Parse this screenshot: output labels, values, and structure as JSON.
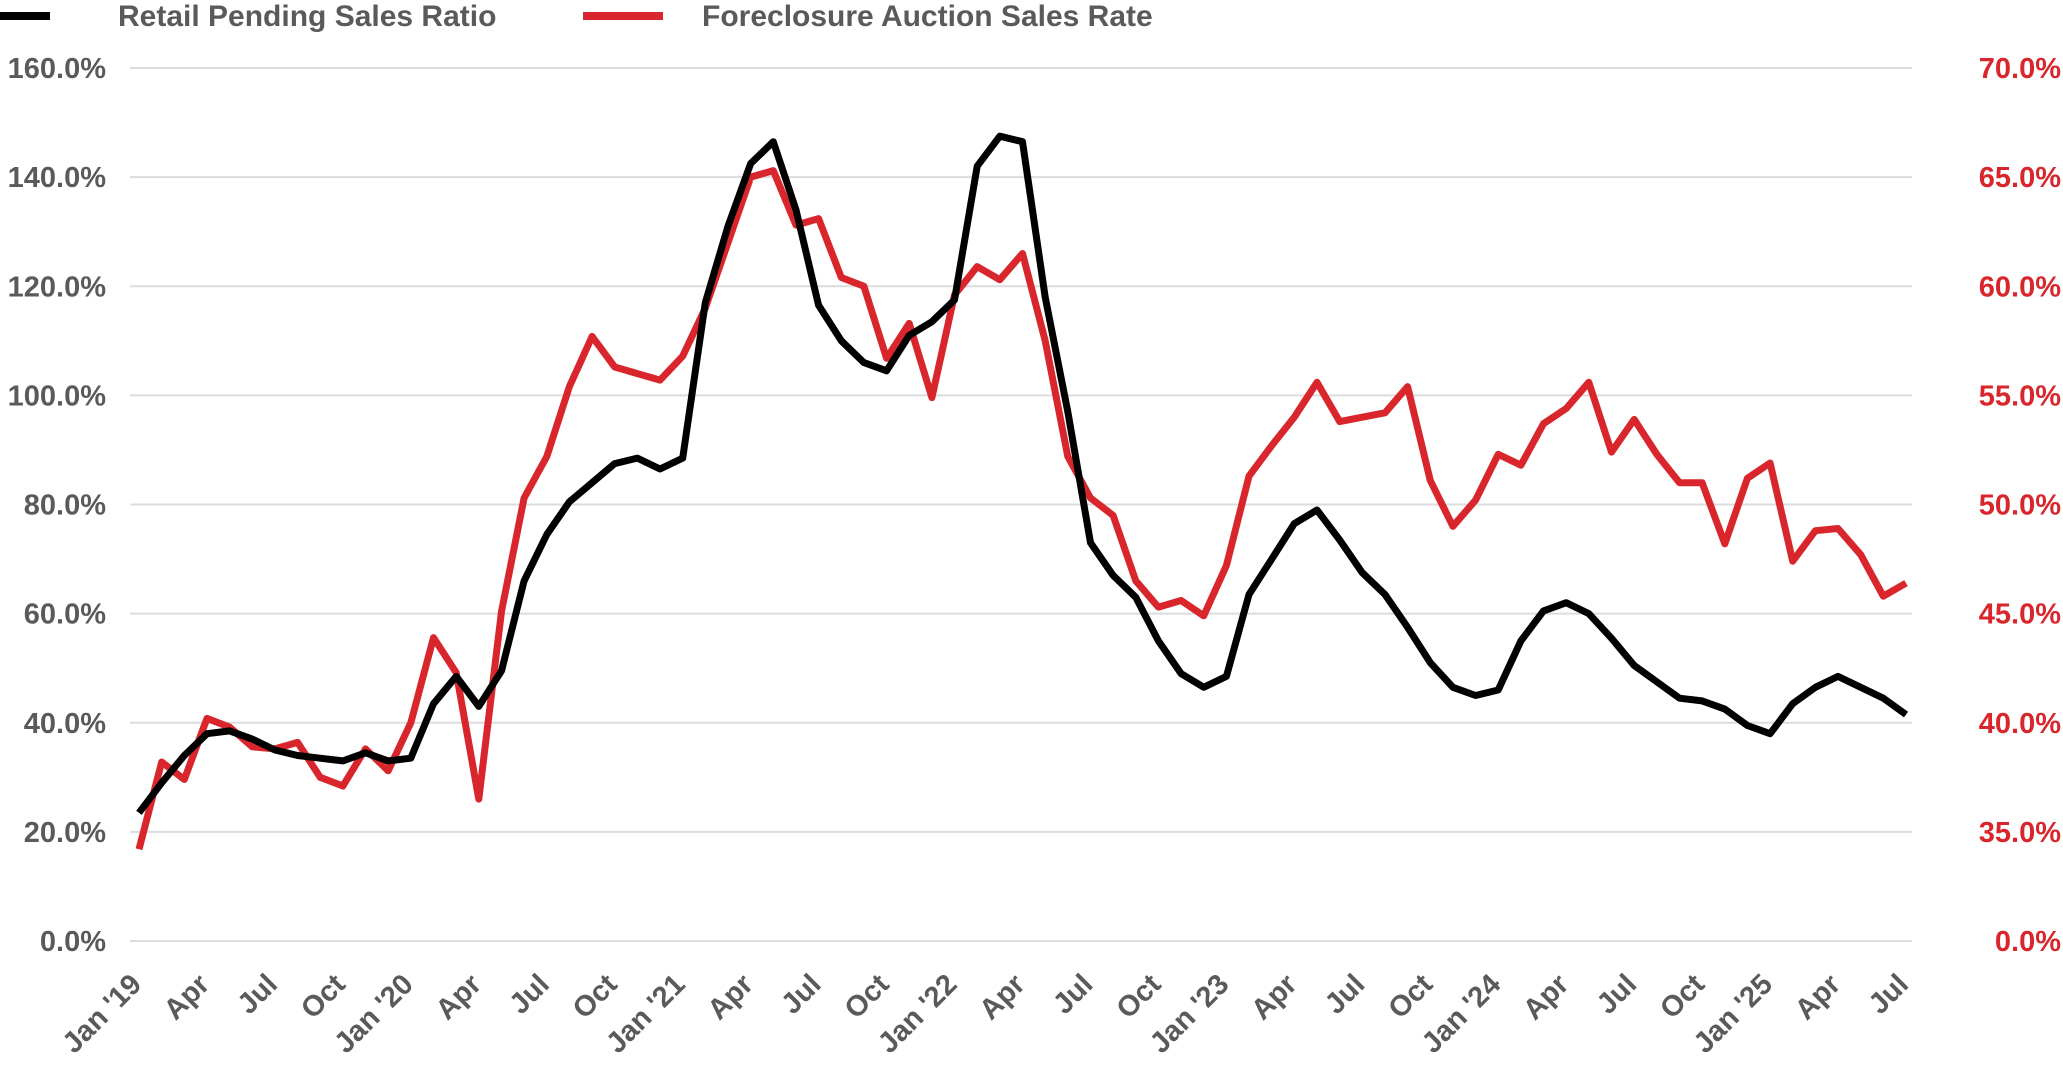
{
  "chart_data": {
    "type": "line",
    "title": "",
    "xlabel": "",
    "ylabel": "",
    "legend_position": "top-left",
    "grid": true,
    "y_left": {
      "min": 0,
      "max": 160,
      "ticks": [
        0,
        20,
        40,
        60,
        80,
        100,
        120,
        140,
        160
      ],
      "tick_labels": [
        "0.0%",
        "20.0%",
        "40.0%",
        "60.0%",
        "80.0%",
        "100.0%",
        "120.0%",
        "140.0%",
        "160.0%"
      ]
    },
    "y_right": {
      "tick_labels": [
        "0.0%",
        "35.0%",
        "40.0%",
        "45.0%",
        "50.0%",
        "55.0%",
        "60.0%",
        "65.0%",
        "70.0%"
      ],
      "ticks": [
        0,
        35,
        40,
        45,
        50,
        55,
        60,
        65,
        70
      ],
      "color": "#d9262c",
      "broken_axis": true
    },
    "x_ticks": [
      "Jan '19",
      "Apr",
      "Jul",
      "Oct",
      "Jan '20",
      "Apr",
      "Jul",
      "Oct",
      "Jan '21",
      "Apr",
      "Jul",
      "Oct",
      "Jan '22",
      "Apr",
      "Jul",
      "Oct",
      "Jan '23",
      "Apr",
      "Jul",
      "Oct",
      "Jan '24",
      "Apr",
      "Jul",
      "Oct",
      "Jan '25",
      "Apr",
      "Jul"
    ],
    "x_tick_interval_months": 3,
    "month_count": 79,
    "series": [
      {
        "name": "Retail Pending Sales Ratio",
        "axis": "left",
        "color": "#000000",
        "values": [
          23.5,
          29,
          34,
          38,
          38.5,
          37,
          35,
          34,
          33.5,
          33,
          34.5,
          33,
          33.5,
          43.5,
          48.5,
          43,
          49.5,
          66,
          74.5,
          80.5,
          84,
          87.5,
          88.5,
          86.5,
          88.5,
          117,
          131,
          142.5,
          146.5,
          134,
          116.5,
          110,
          106,
          104.5,
          111,
          113.5,
          117.5,
          142,
          147.5,
          146.5,
          118,
          97,
          73,
          67,
          63,
          55,
          49,
          46.5,
          48.5,
          63.5,
          70,
          76.5,
          79,
          73.5,
          67.5,
          63.5,
          57.5,
          51,
          46.5,
          45,
          46,
          55,
          60.5,
          62,
          60,
          55.5,
          50.5,
          47.5,
          44.5,
          44,
          42.5,
          39.5,
          38,
          43.5,
          46.5,
          48.5,
          46.5,
          44.5,
          41.5
        ]
      },
      {
        "name": "Foreclosure Auction Sales Rate",
        "axis": "right",
        "color": "#d9262c",
        "values": [
          34.2,
          38.2,
          37.4,
          40.2,
          39.8,
          38.9,
          38.8,
          39.1,
          37.5,
          37.1,
          38.8,
          37.8,
          40.0,
          43.9,
          42.3,
          36.5,
          45.1,
          50.3,
          52.2,
          55.4,
          57.7,
          56.3,
          56.0,
          55.7,
          56.8,
          59.0,
          62.0,
          65.0,
          65.3,
          62.8,
          63.1,
          60.4,
          60.0,
          56.7,
          58.3,
          54.9,
          59.6,
          60.9,
          60.3,
          61.5,
          57.5,
          52.2,
          50.3,
          49.5,
          46.5,
          45.3,
          45.6,
          44.9,
          47.2,
          51.3,
          52.7,
          54.0,
          55.6,
          53.8,
          54.0,
          54.2,
          55.4,
          51.1,
          49.0,
          50.2,
          52.3,
          51.8,
          53.7,
          54.4,
          55.6,
          52.4,
          53.9,
          52.3,
          51.0,
          51.0,
          48.2,
          51.2,
          51.9,
          47.4,
          48.8,
          48.9,
          47.7,
          45.8,
          46.4
        ]
      }
    ]
  }
}
